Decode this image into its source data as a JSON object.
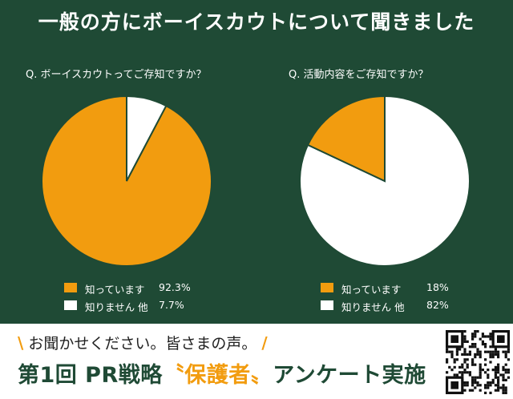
{
  "title": "一般の方にボーイスカウトについて聞きました",
  "colors": {
    "background": "#1f4a35",
    "orange": "#f29c0f",
    "white": "#ffffff",
    "stroke": "#1f4a35"
  },
  "chart_data": [
    {
      "type": "pie",
      "title": "Q.  ボーイスカウトってご存知ですか？",
      "slices": [
        {
          "label": "知っています",
          "value": 92.3,
          "display": "92.3%",
          "color": "#f29c0f"
        },
        {
          "label": "知りません 他",
          "value": 7.7,
          "display": "7.7%",
          "color": "#ffffff"
        }
      ],
      "legend_position": "bottom"
    },
    {
      "type": "pie",
      "title": "Q.  活動内容をご存知ですか？",
      "slices": [
        {
          "label": "知っています",
          "value": 18,
          "display": "18%",
          "color": "#f29c0f"
        },
        {
          "label": "知りません 他",
          "value": 82,
          "display": "82%",
          "color": "#ffffff"
        }
      ],
      "legend_position": "bottom"
    }
  ],
  "footer": {
    "slash_left": "\\",
    "tagline": "お聞かせください。皆さまの声。",
    "slash_right": "/",
    "event_prefix": "第1回 PR戦略",
    "event_accent": "〝保護者〟",
    "event_suffix": "アンケート実施"
  },
  "qr_icon": "qr-code-icon"
}
